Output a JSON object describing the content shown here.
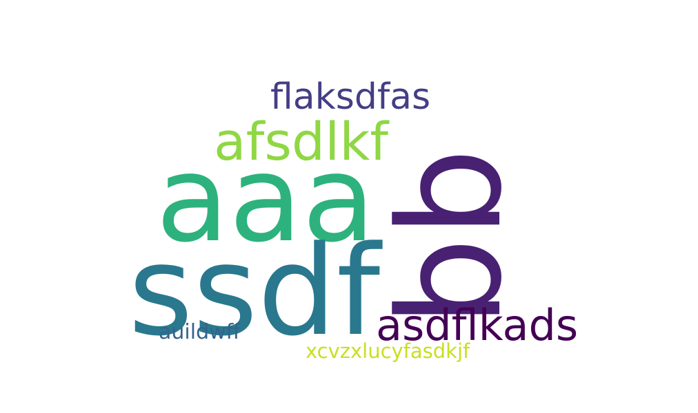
{
  "words": [
    {
      "key": "aaa",
      "text": "aaa",
      "color": "#2db27d"
    },
    {
      "key": "ssdf",
      "text": "ssdf",
      "color": "#2a788e"
    },
    {
      "key": "bb",
      "text": "bb",
      "color": "#482173"
    },
    {
      "key": "afsdlkf",
      "text": "afsdlkf",
      "color": "#8fd744"
    },
    {
      "key": "flaksdfas",
      "text": "flaksdfas",
      "color": "#433e85"
    },
    {
      "key": "asdflkads",
      "text": "asdflkads",
      "color": "#440154"
    },
    {
      "key": "auildwff",
      "text": "auildwff",
      "color": "#33638d"
    },
    {
      "key": "xcvzxlucyfasdkjf",
      "text": "xcvzxlucyfasdkjf",
      "color": "#c8e020"
    }
  ],
  "background": "#ffffff"
}
